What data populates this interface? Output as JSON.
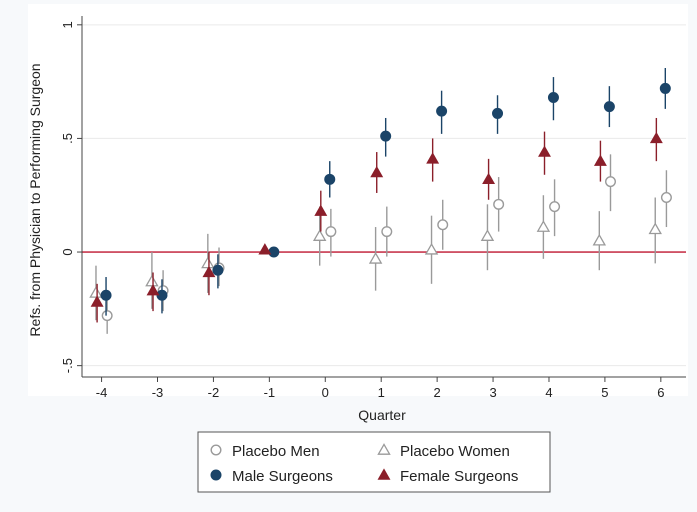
{
  "chart_data": {
    "type": "scatter",
    "xlabel": "Quarter",
    "ylabel": "Refs. from Physician to Performing Surgeon",
    "xlim": [
      -4.35,
      6.45
    ],
    "ylim": [
      -0.55,
      1.03
    ],
    "x_ticks": [
      "-4",
      "-3",
      "-2",
      "-1",
      "0",
      "1",
      "2",
      "3",
      "4",
      "5",
      "6"
    ],
    "y_ticks": [
      {
        "value": 1,
        "label": "1"
      },
      {
        "value": 0.5,
        "label": ".5"
      },
      {
        "value": 0,
        "label": "0"
      },
      {
        "value": -0.5,
        "label": "-.5"
      }
    ],
    "reference_line": {
      "y": 0,
      "color": "#c8384f"
    },
    "grid": "horizontal",
    "legend_position": "bottom",
    "series": [
      {
        "name": "Placebo Men",
        "marker": "circle-open",
        "color": "#9a9a9a",
        "offset": 0.1,
        "points": [
          {
            "x": -4,
            "y": -0.28,
            "lo": -0.36,
            "hi": -0.2
          },
          {
            "x": -3,
            "y": -0.17,
            "lo": -0.26,
            "hi": -0.08
          },
          {
            "x": -2,
            "y": -0.07,
            "lo": -0.15,
            "hi": 0.02
          },
          {
            "x": 0,
            "y": 0.09,
            "lo": -0.02,
            "hi": 0.19
          },
          {
            "x": 1,
            "y": 0.09,
            "lo": -0.02,
            "hi": 0.2
          },
          {
            "x": 2,
            "y": 0.12,
            "lo": 0.01,
            "hi": 0.23
          },
          {
            "x": 3,
            "y": 0.21,
            "lo": 0.09,
            "hi": 0.33
          },
          {
            "x": 4,
            "y": 0.2,
            "lo": 0.07,
            "hi": 0.32
          },
          {
            "x": 5,
            "y": 0.31,
            "lo": 0.18,
            "hi": 0.43
          },
          {
            "x": 6,
            "y": 0.24,
            "lo": 0.11,
            "hi": 0.36
          }
        ]
      },
      {
        "name": "Placebo Women",
        "marker": "triangle-open",
        "color": "#9a9a9a",
        "offset": -0.1,
        "points": [
          {
            "x": -4,
            "y": -0.18,
            "lo": -0.3,
            "hi": -0.06
          },
          {
            "x": -3,
            "y": -0.13,
            "lo": -0.25,
            "hi": 0.0
          },
          {
            "x": -2,
            "y": -0.05,
            "lo": -0.18,
            "hi": 0.08
          },
          {
            "x": 0,
            "y": 0.07,
            "lo": -0.06,
            "hi": 0.2
          },
          {
            "x": 1,
            "y": -0.03,
            "lo": -0.17,
            "hi": 0.11
          },
          {
            "x": 2,
            "y": 0.01,
            "lo": -0.14,
            "hi": 0.16
          },
          {
            "x": 3,
            "y": 0.07,
            "lo": -0.08,
            "hi": 0.21
          },
          {
            "x": 4,
            "y": 0.11,
            "lo": -0.03,
            "hi": 0.25
          },
          {
            "x": 5,
            "y": 0.05,
            "lo": -0.08,
            "hi": 0.18
          },
          {
            "x": 6,
            "y": 0.1,
            "lo": -0.05,
            "hi": 0.24
          }
        ]
      },
      {
        "name": "Male Surgeons",
        "marker": "circle-filled",
        "color": "#1b4468",
        "offset": 0.08,
        "points": [
          {
            "x": -4,
            "y": -0.19,
            "lo": -0.28,
            "hi": -0.11
          },
          {
            "x": -3,
            "y": -0.19,
            "lo": -0.27,
            "hi": -0.12
          },
          {
            "x": -2,
            "y": -0.08,
            "lo": -0.16,
            "hi": -0.01
          },
          {
            "x": -1,
            "y": 0.0,
            "lo": 0.0,
            "hi": 0.0
          },
          {
            "x": 0,
            "y": 0.32,
            "lo": 0.24,
            "hi": 0.4
          },
          {
            "x": 1,
            "y": 0.51,
            "lo": 0.42,
            "hi": 0.59
          },
          {
            "x": 2,
            "y": 0.62,
            "lo": 0.52,
            "hi": 0.71
          },
          {
            "x": 3,
            "y": 0.61,
            "lo": 0.52,
            "hi": 0.69
          },
          {
            "x": 4,
            "y": 0.68,
            "lo": 0.58,
            "hi": 0.77
          },
          {
            "x": 5,
            "y": 0.64,
            "lo": 0.55,
            "hi": 0.73
          },
          {
            "x": 6,
            "y": 0.72,
            "lo": 0.63,
            "hi": 0.81
          }
        ]
      },
      {
        "name": "Female Surgeons",
        "marker": "triangle-filled",
        "color": "#8b1f2a",
        "offset": -0.08,
        "points": [
          {
            "x": -4,
            "y": -0.22,
            "lo": -0.31,
            "hi": -0.14
          },
          {
            "x": -3,
            "y": -0.17,
            "lo": -0.26,
            "hi": -0.09
          },
          {
            "x": -2,
            "y": -0.09,
            "lo": -0.19,
            "hi": 0.0
          },
          {
            "x": -1,
            "y": 0.01,
            "lo": 0.01,
            "hi": 0.01
          },
          {
            "x": 0,
            "y": 0.18,
            "lo": 0.09,
            "hi": 0.27
          },
          {
            "x": 1,
            "y": 0.35,
            "lo": 0.26,
            "hi": 0.44
          },
          {
            "x": 2,
            "y": 0.41,
            "lo": 0.31,
            "hi": 0.5
          },
          {
            "x": 3,
            "y": 0.32,
            "lo": 0.23,
            "hi": 0.41
          },
          {
            "x": 4,
            "y": 0.44,
            "lo": 0.34,
            "hi": 0.53
          },
          {
            "x": 5,
            "y": 0.4,
            "lo": 0.31,
            "hi": 0.49
          },
          {
            "x": 6,
            "y": 0.5,
            "lo": 0.4,
            "hi": 0.59
          }
        ]
      }
    ]
  },
  "legend": {
    "items": [
      {
        "label": "Placebo Men",
        "marker": "circle-open",
        "color": "#9a9a9a"
      },
      {
        "label": "Placebo Women",
        "marker": "triangle-open",
        "color": "#9a9a9a"
      },
      {
        "label": "Male Surgeons",
        "marker": "circle-filled",
        "color": "#1b4468"
      },
      {
        "label": "Female Surgeons",
        "marker": "triangle-filled",
        "color": "#8b1f2a"
      }
    ]
  },
  "colors": {
    "background": "#f7f9fb",
    "plot_background": "#ffffff",
    "axis": "#444444",
    "grid": "#eaeaea",
    "reference_line": "#c8384f"
  }
}
